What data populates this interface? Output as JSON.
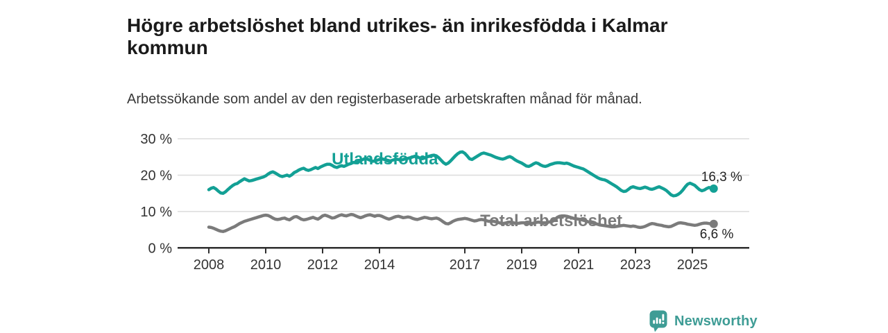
{
  "header": {
    "title": "Högre arbetslöshet bland utrikes- än inrikesfödda i Kalmar kommun",
    "subtitle": "Arbetssökande som andel av den registerbaserade arbetskraften månad för månad."
  },
  "footer": {
    "logo_text": "Newsworthy",
    "logo_color": "#3e9c95"
  },
  "colors": {
    "accent_teal": "#13a095",
    "line_gray": "#7b7b7b",
    "axis": "#2e2e2e",
    "grid": "#dcdcdc",
    "tick_text": "#333333",
    "end_label_text": "#222222",
    "background": "#ffffff"
  },
  "chart_data": {
    "type": "line",
    "title": "Högre arbetslöshet bland utrikes- än inrikesfödda i Kalmar kommun",
    "subtitle": "Arbetssökande som andel av den registerbaserade arbetskraften månad för månad.",
    "unit": "%",
    "frequency": "monthly",
    "x_start_year": 2008,
    "x_start_month": 1,
    "x_end_year": 2025,
    "x_end_month": 10,
    "ylim": [
      0,
      30
    ],
    "grid": true,
    "legend_position": "inline-labels",
    "yticks": [
      0,
      10,
      20,
      30
    ],
    "ytick_labels": [
      "0 %",
      "10 %",
      "20 %",
      "30 %"
    ],
    "xticks": [
      2008,
      2010,
      2012,
      2014,
      2017,
      2019,
      2021,
      2023,
      2025
    ],
    "xtick_labels": [
      "2008",
      "2010",
      "2012",
      "2014",
      "2017",
      "2019",
      "2021",
      "2023",
      "2025"
    ],
    "series": [
      {
        "name": "Utlandsfödda",
        "color": "#13a095",
        "end_label": "16,3 %",
        "end_value": 16.3,
        "label_anchor": {
          "x_year": 2012.32,
          "y_value": 24.5
        },
        "values": [
          16.0,
          16.4,
          16.6,
          16.2,
          15.6,
          15.1,
          15.0,
          15.4,
          16.0,
          16.6,
          17.1,
          17.5,
          17.7,
          18.2,
          18.6,
          19.0,
          18.7,
          18.4,
          18.5,
          18.7,
          18.9,
          19.1,
          19.3,
          19.5,
          19.8,
          20.3,
          20.7,
          20.9,
          20.6,
          20.2,
          19.8,
          19.6,
          19.8,
          20.0,
          19.7,
          20.1,
          20.7,
          21.0,
          21.4,
          21.7,
          21.9,
          21.5,
          21.3,
          21.5,
          21.8,
          22.1,
          21.8,
          22.2,
          22.5,
          22.8,
          23.0,
          23.0,
          22.7,
          22.3,
          22.1,
          22.4,
          22.6,
          22.4,
          22.7,
          23.0,
          23.2,
          23.5,
          23.4,
          23.7,
          24.0,
          24.3,
          24.6,
          24.4,
          24.1,
          23.8,
          23.9,
          24.1,
          24.3,
          24.5,
          24.3,
          24.0,
          23.8,
          24.0,
          24.2,
          24.4,
          24.3,
          24.1,
          24.3,
          24.5,
          24.6,
          24.8,
          25.0,
          25.2,
          25.0,
          24.7,
          24.5,
          24.7,
          25.0,
          25.2,
          25.4,
          25.5,
          25.3,
          24.8,
          24.1,
          23.4,
          23.0,
          23.3,
          23.9,
          24.6,
          25.3,
          25.9,
          26.3,
          26.4,
          26.0,
          25.3,
          24.5,
          24.3,
          24.7,
          25.1,
          25.5,
          25.9,
          26.1,
          25.9,
          25.7,
          25.5,
          25.2,
          24.9,
          24.7,
          24.5,
          24.4,
          24.6,
          24.9,
          25.1,
          24.8,
          24.3,
          23.9,
          23.6,
          23.3,
          22.9,
          22.5,
          22.4,
          22.7,
          23.1,
          23.4,
          23.2,
          22.8,
          22.5,
          22.4,
          22.6,
          22.9,
          23.1,
          23.3,
          23.4,
          23.4,
          23.3,
          23.2,
          23.3,
          23.1,
          22.8,
          22.5,
          22.3,
          22.1,
          21.9,
          21.7,
          21.3,
          20.9,
          20.5,
          20.1,
          19.7,
          19.3,
          19.0,
          18.8,
          18.7,
          18.4,
          18.0,
          17.6,
          17.2,
          16.8,
          16.3,
          15.8,
          15.5,
          15.6,
          16.1,
          16.6,
          16.8,
          16.6,
          16.4,
          16.3,
          16.5,
          16.7,
          16.5,
          16.2,
          16.1,
          16.3,
          16.6,
          16.8,
          16.5,
          16.2,
          15.8,
          15.2,
          14.6,
          14.3,
          14.4,
          14.7,
          15.2,
          15.9,
          16.8,
          17.5,
          17.8,
          17.5,
          17.2,
          16.6,
          16.0,
          15.7,
          15.9,
          16.3,
          16.6,
          16.4,
          16.3
        ]
      },
      {
        "name": "Total arbetslöshet",
        "color": "#7b7b7b",
        "end_label": "6,6 %",
        "end_value": 6.6,
        "label_anchor": {
          "x_year": 2017.54,
          "y_value": 7.5
        },
        "values": [
          5.7,
          5.6,
          5.4,
          5.1,
          4.8,
          4.6,
          4.5,
          4.7,
          5.0,
          5.3,
          5.6,
          5.9,
          6.3,
          6.7,
          7.0,
          7.3,
          7.5,
          7.7,
          7.9,
          8.1,
          8.3,
          8.5,
          8.7,
          8.9,
          9.0,
          8.9,
          8.6,
          8.2,
          7.9,
          7.8,
          7.9,
          8.1,
          8.2,
          7.9,
          7.7,
          8.1,
          8.5,
          8.6,
          8.3,
          7.9,
          7.7,
          7.8,
          8.0,
          8.2,
          8.4,
          8.1,
          7.9,
          8.3,
          8.8,
          9.0,
          8.8,
          8.5,
          8.2,
          8.3,
          8.6,
          8.9,
          9.1,
          8.9,
          8.8,
          9.0,
          9.2,
          9.1,
          8.8,
          8.5,
          8.3,
          8.5,
          8.8,
          9.0,
          9.1,
          8.9,
          8.7,
          8.9,
          8.9,
          8.7,
          8.4,
          8.1,
          7.9,
          8.1,
          8.4,
          8.6,
          8.7,
          8.5,
          8.3,
          8.4,
          8.5,
          8.4,
          8.1,
          7.9,
          7.8,
          8.0,
          8.2,
          8.4,
          8.3,
          8.1,
          8.0,
          8.1,
          8.2,
          8.0,
          7.6,
          7.1,
          6.7,
          6.6,
          6.9,
          7.3,
          7.6,
          7.8,
          7.9,
          8.0,
          8.1,
          8.0,
          7.8,
          7.6,
          7.4,
          7.5,
          7.7,
          7.8,
          7.7,
          7.5,
          7.3,
          7.3,
          7.3,
          7.2,
          7.0,
          6.8,
          6.7,
          6.8,
          7.0,
          7.1,
          7.0,
          6.8,
          6.7,
          6.8,
          6.9,
          6.9,
          6.8,
          6.7,
          6.7,
          6.8,
          7.0,
          7.1,
          7.0,
          6.9,
          6.9,
          7.0,
          7.2,
          7.3,
          7.8,
          8.4,
          8.7,
          8.8,
          8.8,
          8.7,
          8.5,
          8.3,
          8.1,
          8.0,
          7.9,
          7.8,
          7.6,
          7.4,
          7.2,
          7.0,
          6.9,
          6.7,
          6.5,
          6.3,
          6.2,
          6.1,
          6.0,
          5.9,
          5.8,
          5.8,
          5.9,
          6.0,
          6.1,
          6.2,
          6.1,
          6.0,
          5.9,
          6.0,
          5.9,
          5.7,
          5.6,
          5.7,
          5.9,
          6.2,
          6.5,
          6.7,
          6.6,
          6.4,
          6.3,
          6.2,
          6.0,
          5.9,
          5.8,
          5.9,
          6.2,
          6.5,
          6.8,
          6.9,
          6.8,
          6.7,
          6.5,
          6.4,
          6.3,
          6.2,
          6.3,
          6.5,
          6.7,
          6.8,
          6.8,
          6.7,
          6.6,
          6.6
        ]
      }
    ]
  }
}
